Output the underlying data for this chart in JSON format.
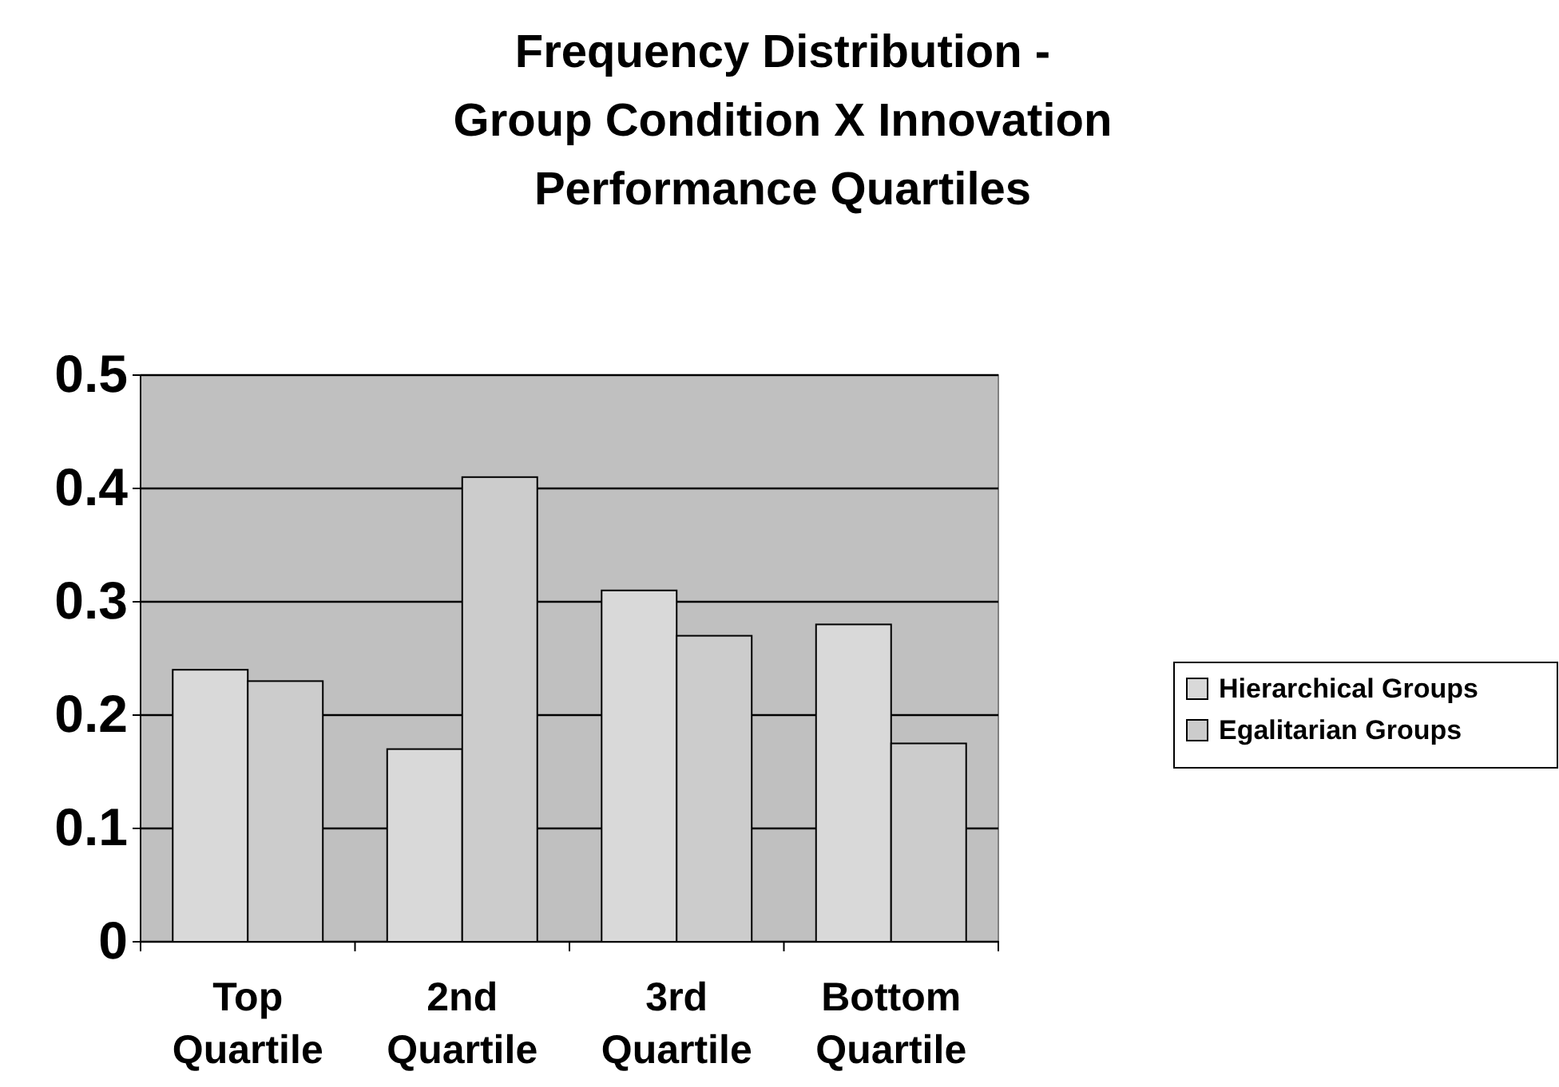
{
  "chart_data": {
    "type": "bar",
    "title": "Frequency Distribution -\nGroup Condition X Innovation\nPerformance Quartiles",
    "categories": [
      "Top\nQuartile",
      "2nd\nQuartile",
      "3rd\nQuartile",
      "Bottom\nQuartile"
    ],
    "series": [
      {
        "name": "Hierarchical Groups",
        "color": "#d9d9d9",
        "values": [
          0.24,
          0.17,
          0.31,
          0.28
        ]
      },
      {
        "name": "Egalitarian Groups",
        "color": "#cccccc",
        "values": [
          0.23,
          0.41,
          0.27,
          0.175
        ]
      }
    ],
    "ylim": [
      0,
      0.5
    ],
    "yticks": [
      0,
      0.1,
      0.2,
      0.3,
      0.4,
      0.5
    ],
    "grid": "y",
    "legend": "right"
  }
}
